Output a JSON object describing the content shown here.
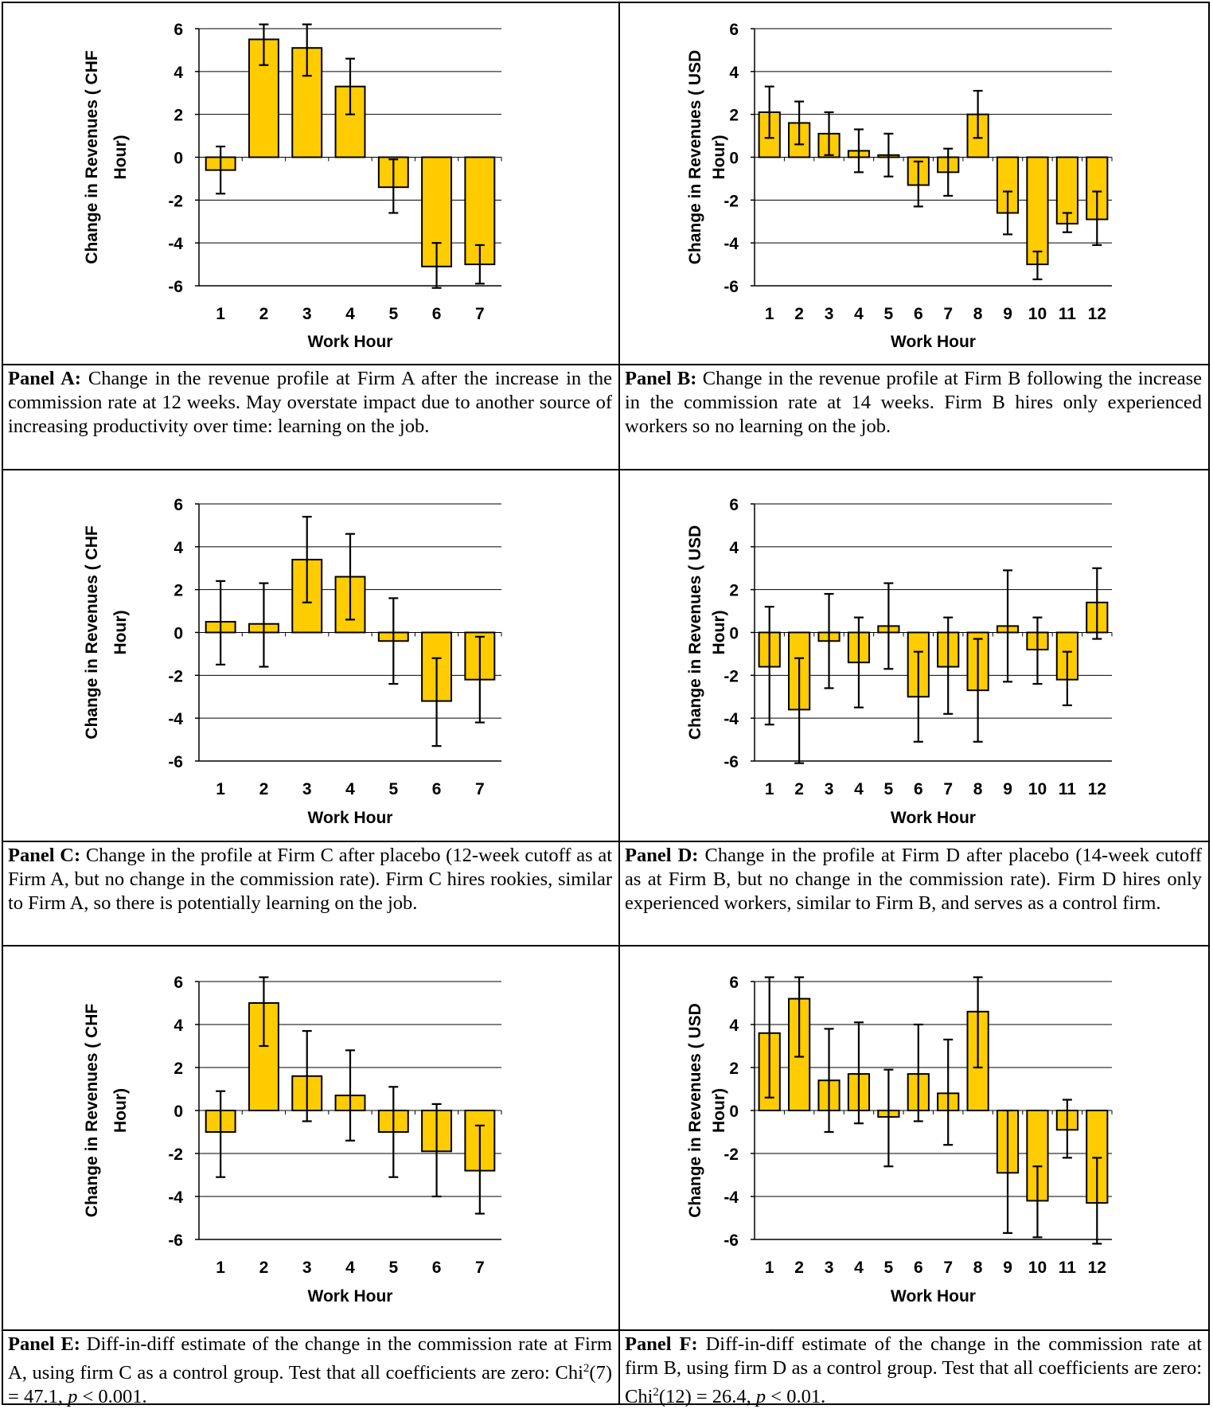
{
  "style": {
    "bar_color": "#FFCC00",
    "bar_edge": "#000000",
    "grid_color": "#000000"
  },
  "chart_data": [
    {
      "panel": "A",
      "type": "bar",
      "categories": [
        "1",
        "2",
        "3",
        "4",
        "5",
        "6",
        "7"
      ],
      "values": [
        -0.6,
        5.5,
        5.1,
        3.3,
        -1.4,
        -5.1,
        -5.0
      ],
      "err_low": [
        -1.7,
        4.3,
        3.8,
        2.0,
        -2.6,
        -6.1,
        -5.9
      ],
      "err_high": [
        0.5,
        6.2,
        6.2,
        4.6,
        -0.1,
        -4.0,
        -4.1
      ],
      "ylim": [
        -6,
        6
      ],
      "yticks": [
        -6,
        -4,
        -2,
        0,
        2,
        4,
        6
      ],
      "ylabel_line1": "Change in Revenues ( CHF",
      "ylabel_line2": "Hour)",
      "xlabel": "Work Hour"
    },
    {
      "panel": "B",
      "type": "bar",
      "categories": [
        "1",
        "2",
        "3",
        "4",
        "5",
        "6",
        "7",
        "8",
        "9",
        "10",
        "11",
        "12"
      ],
      "values": [
        2.1,
        1.6,
        1.1,
        0.3,
        0.1,
        -1.3,
        -0.7,
        2.0,
        -2.6,
        -5.0,
        -3.1,
        -2.9
      ],
      "err_low": [
        0.9,
        0.6,
        0.1,
        -0.7,
        -0.9,
        -2.3,
        -1.8,
        0.9,
        -3.6,
        -5.7,
        -3.5,
        -4.1
      ],
      "err_high": [
        3.3,
        2.6,
        2.1,
        1.3,
        1.1,
        -0.2,
        0.4,
        3.1,
        -1.6,
        -4.4,
        -2.6,
        -1.6
      ],
      "ylim": [
        -6,
        6
      ],
      "yticks": [
        -6,
        -4,
        -2,
        0,
        2,
        4,
        6
      ],
      "ylabel_line1": "Change in Revenues ( USD",
      "ylabel_line2": "Hour)",
      "xlabel": "Work Hour"
    },
    {
      "panel": "C",
      "type": "bar",
      "categories": [
        "1",
        "2",
        "3",
        "4",
        "5",
        "6",
        "7"
      ],
      "values": [
        0.5,
        0.4,
        3.4,
        2.6,
        -0.4,
        -3.2,
        -2.2
      ],
      "err_low": [
        -1.5,
        -1.6,
        1.4,
        0.6,
        -2.4,
        -5.3,
        -4.2
      ],
      "err_high": [
        2.4,
        2.3,
        5.4,
        4.6,
        1.6,
        -1.2,
        -0.2
      ],
      "ylim": [
        -6,
        6
      ],
      "yticks": [
        -6,
        -4,
        -2,
        0,
        2,
        4,
        6
      ],
      "ylabel_line1": "Change in Revenues ( CHF",
      "ylabel_line2": "Hour)",
      "xlabel": "Work Hour"
    },
    {
      "panel": "D",
      "type": "bar",
      "categories": [
        "1",
        "2",
        "3",
        "4",
        "5",
        "6",
        "7",
        "8",
        "9",
        "10",
        "11",
        "12"
      ],
      "values": [
        -1.6,
        -3.6,
        -0.4,
        -1.4,
        0.3,
        -3.0,
        -1.6,
        -2.7,
        0.3,
        -0.8,
        -2.2,
        1.4
      ],
      "err_low": [
        -4.3,
        -6.1,
        -2.6,
        -3.5,
        -1.7,
        -5.1,
        -3.8,
        -5.1,
        -2.3,
        -2.4,
        -3.4,
        -0.3
      ],
      "err_high": [
        1.2,
        -1.2,
        1.8,
        0.7,
        2.3,
        -0.9,
        0.7,
        -0.3,
        2.9,
        0.7,
        -0.9,
        3.0
      ],
      "ylim": [
        -6,
        6
      ],
      "yticks": [
        -6,
        -4,
        -2,
        0,
        2,
        4,
        6
      ],
      "ylabel_line1": "Change in Revenues ( USD",
      "ylabel_line2": "Hour)",
      "xlabel": "Work Hour"
    },
    {
      "panel": "E",
      "type": "bar",
      "categories": [
        "1",
        "2",
        "3",
        "4",
        "5",
        "6",
        "7"
      ],
      "values": [
        -1.0,
        5.0,
        1.6,
        0.7,
        -1.0,
        -1.9,
        -2.8
      ],
      "err_low": [
        -3.1,
        3.0,
        -0.5,
        -1.4,
        -3.1,
        -4.0,
        -4.8
      ],
      "err_high": [
        0.9,
        6.2,
        3.7,
        2.8,
        1.1,
        0.3,
        -0.7
      ],
      "ylim": [
        -6,
        6
      ],
      "yticks": [
        -6,
        -4,
        -2,
        0,
        2,
        4,
        6
      ],
      "ylabel_line1": "Change in Revenues ( CHF",
      "ylabel_line2": "Hour)",
      "xlabel": "Work Hour"
    },
    {
      "panel": "F",
      "type": "bar",
      "categories": [
        "1",
        "2",
        "3",
        "4",
        "5",
        "6",
        "7",
        "8",
        "9",
        "10",
        "11",
        "12"
      ],
      "values": [
        3.6,
        5.2,
        1.4,
        1.7,
        -0.3,
        1.7,
        0.8,
        4.6,
        -2.9,
        -4.2,
        -0.9,
        -4.3
      ],
      "err_low": [
        0.6,
        2.5,
        -1.0,
        -0.6,
        -2.6,
        -0.5,
        -1.6,
        2.0,
        -5.7,
        -5.9,
        -2.2,
        -6.2
      ],
      "err_high": [
        6.2,
        6.2,
        3.8,
        4.1,
        1.9,
        4.0,
        3.3,
        6.2,
        0.0,
        -2.6,
        0.5,
        -2.2
      ],
      "ylim": [
        -6,
        6
      ],
      "yticks": [
        -6,
        -4,
        -2,
        0,
        2,
        4,
        6
      ],
      "ylabel_line1": "Change in Revenues ( USD",
      "ylabel_line2": "Hour)",
      "xlabel": "Work Hour"
    }
  ],
  "captions": {
    "A": {
      "label": "Panel A:",
      "text": " Change in the revenue profile at Firm A after the increase in the commission rate at 12 weeks. May overstate impact due to another source of increasing productivity over time: learning on the job."
    },
    "B": {
      "label": "Panel B:",
      "text": " Change in the revenue profile at Firm B following the increase in the commission rate at 14 weeks. Firm B hires only experienced workers so no learning on the job."
    },
    "C": {
      "label": "Panel C:",
      "text": " Change in the profile at Firm C after placebo (12-week cutoff as at Firm A, but no change in the commission rate). Firm C hires rookies, similar to Firm A, so there is potentially learning on the job."
    },
    "D": {
      "label": "Panel D:",
      "text": " Change in the profile at Firm D after placebo (14-week cutoff as at Firm B, but no change in the commission rate).  Firm D hires only experienced workers, similar to Firm B, and serves as a control firm."
    },
    "E": {
      "label": "Panel E:",
      "text": " Diff-in-diff estimate of the change in the commission rate at Firm A, using firm C as a control group. Test that all coefficients are zero: ",
      "stat_pre": "Chi",
      "stat_sup": "2",
      "stat_post": "(7) = 47.1, ",
      "p": "p",
      "p_post": " < 0.001."
    },
    "F": {
      "label": "Panel F:",
      "text": " Diff-in-diff estimate of the change in the commission rate at firm B, using firm D as a control group. Test that all coefficients are zero: ",
      "stat_pre": "Chi",
      "stat_sup": "2",
      "stat_post": "(12) = 26.4, ",
      "p": "p",
      "p_post": " < 0.01."
    }
  }
}
